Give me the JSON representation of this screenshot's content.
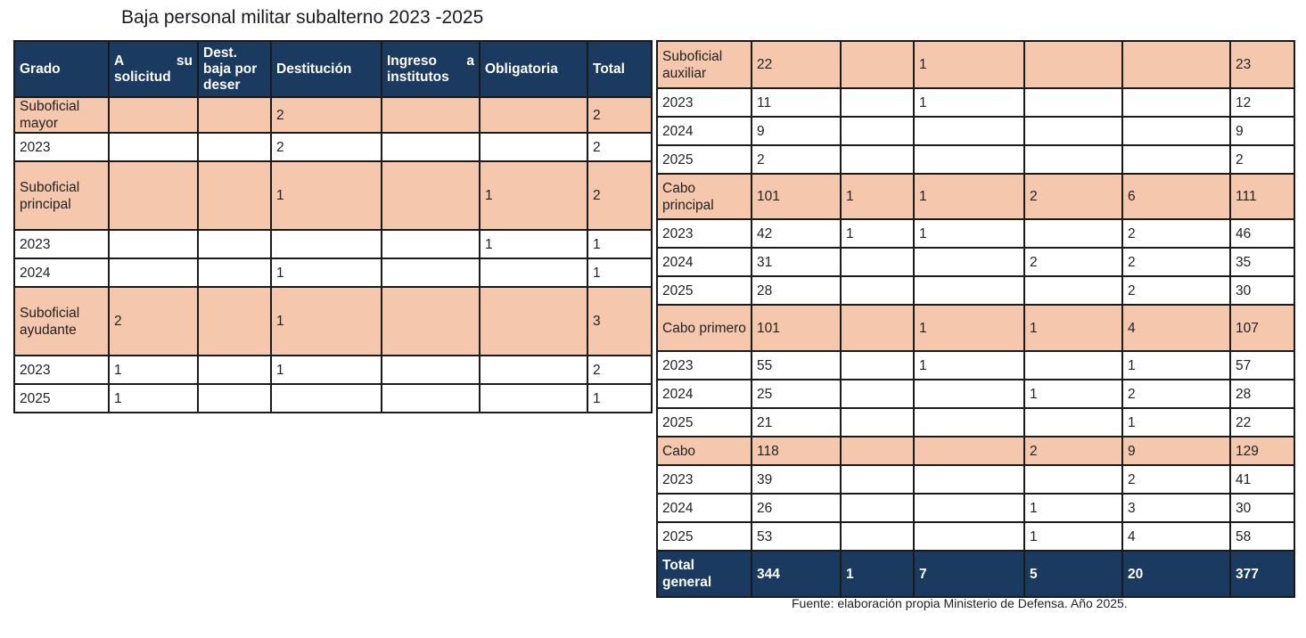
{
  "title": "Baja personal militar subalterno 2023 -2025",
  "source": "Fuente: elaboración propia Ministerio de Defensa. Año 2025.",
  "colors": {
    "header": "#1b3a5f",
    "group_row": "#f5c7ac",
    "border": "#1a1a1a"
  },
  "headers": {
    "grado": "Grado",
    "a_su_1a": "A",
    "a_su_1b": "su",
    "a_su_2": "solicitud",
    "dest_baja": "Dest. baja por deser",
    "destitucion": "Destitución",
    "ingreso_1a": "Ingreso",
    "ingreso_1b": "a",
    "ingreso_2": "institutos",
    "obligatoria": "Obligatoria",
    "total": "Total"
  },
  "left_rows": [
    {
      "type": "group",
      "cells": [
        "Suboficial mayor",
        "",
        "",
        "2",
        "",
        "",
        "2"
      ]
    },
    {
      "type": "year",
      "cells": [
        "2023",
        "",
        "",
        "2",
        "",
        "",
        "2"
      ]
    },
    {
      "type": "group",
      "cells": [
        "Suboficial principal",
        "",
        "",
        "1",
        "",
        "1",
        "2"
      ]
    },
    {
      "type": "year",
      "cells": [
        "2023",
        "",
        "",
        "",
        "",
        "1",
        "1"
      ]
    },
    {
      "type": "year",
      "cells": [
        "2024",
        "",
        "",
        "1",
        "",
        "",
        "1"
      ]
    },
    {
      "type": "group",
      "cells": [
        "Suboficial ayudante",
        "2",
        "",
        "1",
        "",
        "",
        "3"
      ]
    },
    {
      "type": "year",
      "cells": [
        "2023",
        "1",
        "",
        "1",
        "",
        "",
        "2"
      ]
    },
    {
      "type": "year",
      "cells": [
        "2025",
        "1",
        "",
        "",
        "",
        "",
        "1"
      ]
    }
  ],
  "right_rows": [
    {
      "type": "group",
      "cells": [
        "Suboficial auxiliar",
        "22",
        "",
        "1",
        "",
        "",
        "23"
      ]
    },
    {
      "type": "year",
      "cells": [
        "2023",
        "11",
        "",
        "1",
        "",
        "",
        "12"
      ]
    },
    {
      "type": "year",
      "cells": [
        "2024",
        "9",
        "",
        "",
        "",
        "",
        "9"
      ]
    },
    {
      "type": "year",
      "cells": [
        "2025",
        "2",
        "",
        "",
        "",
        "",
        "2"
      ]
    },
    {
      "type": "group",
      "cells": [
        "Cabo principal",
        "101",
        "1",
        "1",
        "2",
        "6",
        "111"
      ]
    },
    {
      "type": "year",
      "cells": [
        "2023",
        "42",
        "1",
        "1",
        "",
        "2",
        "46"
      ]
    },
    {
      "type": "year",
      "cells": [
        "2024",
        "31",
        "",
        "",
        "2",
        "2",
        "35"
      ]
    },
    {
      "type": "year",
      "cells": [
        "2025",
        "28",
        "",
        "",
        "",
        "2",
        "30"
      ]
    },
    {
      "type": "group",
      "cells": [
        "Cabo primero",
        "101",
        "",
        "1",
        "1",
        "4",
        "107"
      ]
    },
    {
      "type": "year",
      "cells": [
        "2023",
        "55",
        "",
        "1",
        "",
        "1",
        "57"
      ]
    },
    {
      "type": "year",
      "cells": [
        "2024",
        "25",
        "",
        "",
        "1",
        "2",
        "28"
      ]
    },
    {
      "type": "year",
      "cells": [
        "2025",
        "21",
        "",
        "",
        "",
        "1",
        "22"
      ]
    },
    {
      "type": "group",
      "cells": [
        "Cabo",
        "118",
        "",
        "",
        "2",
        "9",
        "129"
      ]
    },
    {
      "type": "year",
      "cells": [
        "2023",
        "39",
        "",
        "",
        "",
        "2",
        "41"
      ]
    },
    {
      "type": "year",
      "cells": [
        "2024",
        "26",
        "",
        "",
        "1",
        "3",
        "30"
      ]
    },
    {
      "type": "year",
      "cells": [
        "2025",
        "53",
        "",
        "",
        "1",
        "4",
        "58"
      ]
    },
    {
      "type": "total",
      "cells": [
        "Total general",
        "344",
        "1",
        "7",
        "5",
        "20",
        "377"
      ]
    }
  ]
}
